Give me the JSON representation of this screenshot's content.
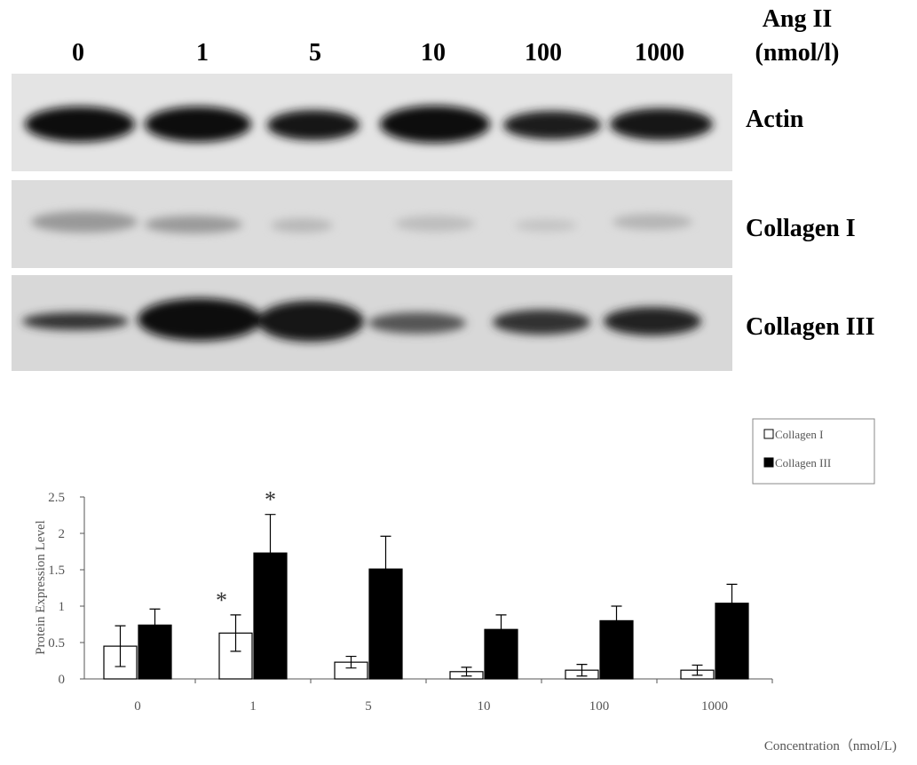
{
  "blot": {
    "treatment": "Ang II",
    "unit": "(nmol/l)",
    "lanes": [
      "0",
      "1",
      "5",
      "10",
      "100",
      "1000"
    ],
    "rows": [
      "Actin",
      "Collagen I",
      "Collagen III"
    ]
  },
  "chart_data": {
    "type": "bar",
    "ylabel": "Protein Expression Level",
    "xlabel": "Concentration（nmol/L)",
    "categories": [
      "0",
      "1",
      "5",
      "10",
      "100",
      "1000"
    ],
    "series": [
      {
        "name": "Collagen I",
        "color": "#ffffff",
        "values": [
          0.45,
          0.63,
          0.23,
          0.1,
          0.12,
          0.12
        ],
        "errors": [
          0.28,
          0.25,
          0.08,
          0.06,
          0.08,
          0.07
        ],
        "markers": [
          null,
          "*",
          null,
          null,
          null,
          null
        ]
      },
      {
        "name": "Collagen III",
        "color": "#000000",
        "values": [
          0.74,
          1.73,
          1.51,
          0.68,
          0.8,
          1.04
        ],
        "errors": [
          0.22,
          0.53,
          0.45,
          0.2,
          0.2,
          0.26
        ],
        "markers": [
          null,
          "*",
          null,
          null,
          null,
          null
        ]
      }
    ],
    "ylim": [
      0,
      2.5
    ],
    "yticks": [
      0,
      0.5,
      1,
      1.5,
      2,
      2.5
    ],
    "legend": "upper right"
  }
}
